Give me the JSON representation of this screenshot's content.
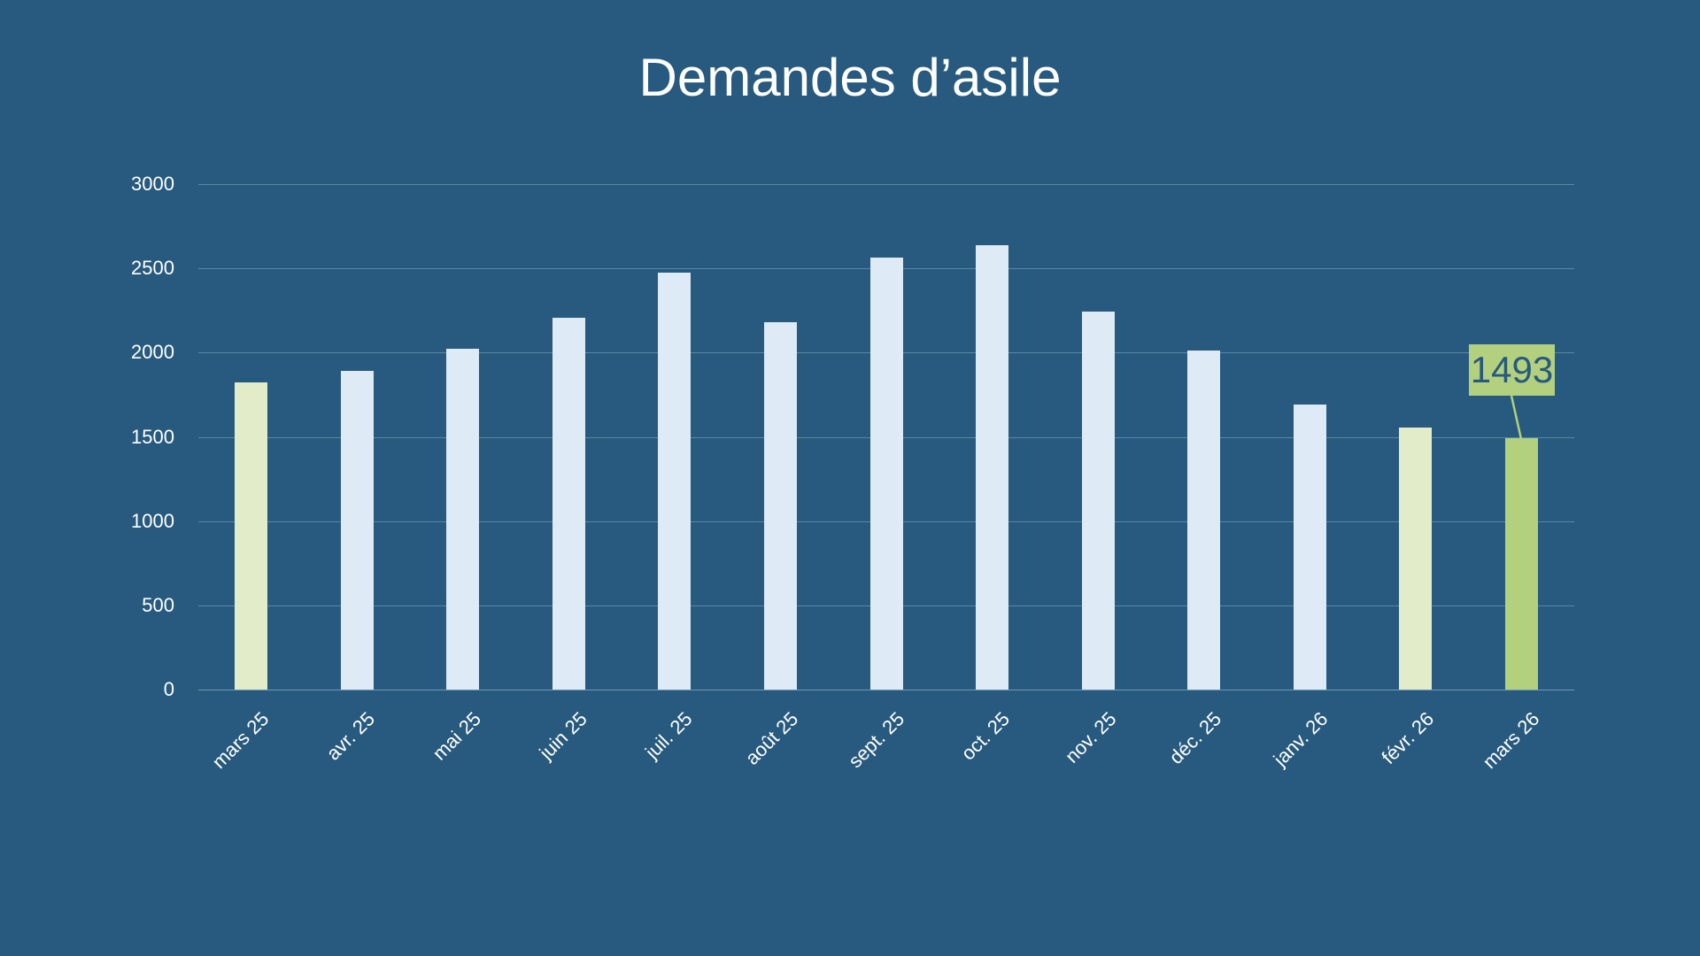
{
  "title": "Demandes d’asile",
  "colors": {
    "background": "#275A7E",
    "bar_default": "#DEEAF6",
    "bar_compare": "#E2ECC9",
    "bar_highlight": "#B3D07E",
    "gridline": "#5A86A6",
    "text": "#FFFFFF",
    "callout_text": "#275A7E"
  },
  "y_axis": {
    "ticks": [
      "0",
      "500",
      "1000",
      "1500",
      "2000",
      "2500",
      "3000"
    ],
    "min": 0,
    "max": 3000
  },
  "callout": {
    "label": "1493",
    "category": "mars 26"
  },
  "chart_data": {
    "type": "bar",
    "title": "Demandes d’asile",
    "xlabel": "",
    "ylabel": "",
    "ylim": [
      0,
      3000
    ],
    "yticks": [
      0,
      500,
      1000,
      1500,
      2000,
      2500,
      3000
    ],
    "grid": true,
    "legend": null,
    "categories": [
      "mars 25",
      "avr. 25",
      "mai 25",
      "juin 25",
      "juil. 25",
      "août 25",
      "sept. 25",
      "oct. 25",
      "nov. 25",
      "déc. 25",
      "janv. 26",
      "févr. 26",
      "mars 26"
    ],
    "values": [
      1825,
      1892,
      2021,
      2208,
      2476,
      2180,
      2565,
      2639,
      2243,
      2012,
      1690,
      1554,
      1493
    ],
    "bar_styles": [
      "compare",
      "default",
      "default",
      "default",
      "default",
      "default",
      "default",
      "default",
      "default",
      "default",
      "default",
      "compare",
      "highlight"
    ],
    "annotations": [
      {
        "category": "mars 26",
        "text": "1493",
        "type": "data-label-callout"
      }
    ]
  }
}
